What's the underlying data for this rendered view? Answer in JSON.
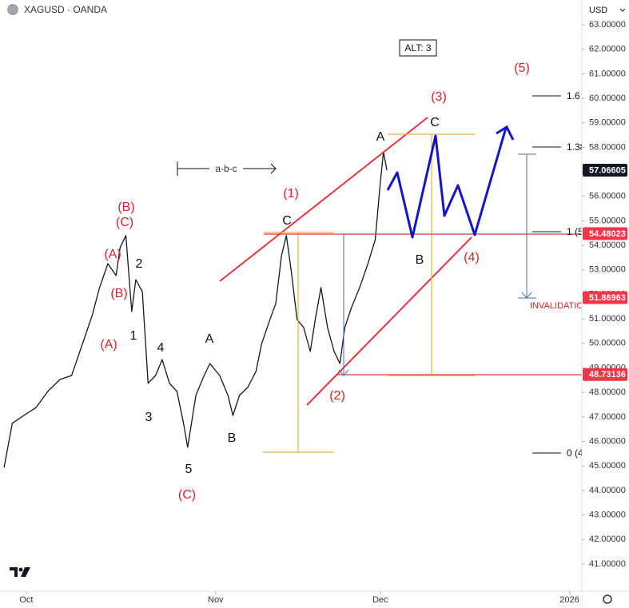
{
  "chart_data": {
    "type": "line",
    "title": "XAGUSD · OANDA",
    "currency": "USD",
    "color": "#131722",
    "x": [
      -2.7,
      -1.7,
      -0.3,
      1.2,
      2.6,
      4.1,
      5.5,
      6.5,
      8.0,
      8.9,
      9.9,
      10.9,
      11.4,
      12.1,
      12.8,
      13.3,
      14.1,
      14.8,
      15.7,
      16.5,
      17.4,
      18.3,
      19.1,
      19.6,
      20.6,
      21.6,
      22.3,
      23.5,
      24.5,
      25.1,
      25.9,
      26.9,
      27.9,
      28.6,
      29.6,
      30.3,
      31.0,
      31.6,
      32.2,
      32.9,
      33.7,
      34.5,
      35.1,
      35.8,
      36.6,
      37.4,
      38.1,
      38.7,
      39.5,
      40.5,
      41.5,
      42.4,
      43.0,
      43.4,
      43.8
    ],
    "values": [
      44.94,
      46.74,
      47.06,
      47.39,
      48.04,
      48.53,
      48.69,
      49.67,
      51.14,
      52.28,
      53.25,
      52.77,
      53.91,
      54.4,
      51.3,
      52.6,
      52.11,
      48.37,
      48.69,
      49.34,
      48.37,
      48.04,
      46.74,
      45.76,
      47.88,
      48.69,
      49.18,
      48.69,
      47.88,
      47.06,
      47.88,
      48.2,
      48.85,
      49.99,
      50.97,
      51.62,
      53.58,
      54.4,
      52.93,
      50.97,
      50.65,
      49.67,
      50.97,
      52.28,
      50.65,
      49.67,
      49.18,
      50.65,
      51.46,
      52.28,
      53.25,
      54.23,
      56.51,
      57.82,
      57.06605
    ],
    "xlim": [
      -3.2,
      67.5
    ],
    "ylim": [
      39.89,
      64.01
    ],
    "xticks": [
      {
        "value": 0,
        "label": "Oct"
      },
      {
        "value": 23,
        "label": "Nov"
      },
      {
        "value": 43,
        "label": "Dec"
      },
      {
        "value": 66,
        "label": "2026"
      }
    ],
    "yticks": [
      {
        "value": 41,
        "label": "41.00000"
      },
      {
        "value": 42,
        "label": "42.00000"
      },
      {
        "value": 43,
        "label": "43.00000"
      },
      {
        "value": 44,
        "label": "44.00000"
      },
      {
        "value": 45,
        "label": "45.00000"
      },
      {
        "value": 46,
        "label": "46.00000"
      },
      {
        "value": 47,
        "label": "47.00000"
      },
      {
        "value": 48,
        "label": "48.00000"
      },
      {
        "value": 49,
        "label": "49.00000"
      },
      {
        "value": 50,
        "label": "50.00000"
      },
      {
        "value": 51,
        "label": "51.00000"
      },
      {
        "value": 52,
        "label": "52.00000"
      },
      {
        "value": 53,
        "label": "53.00000"
      },
      {
        "value": 54,
        "label": "54.00000"
      },
      {
        "value": 55,
        "label": "55.00000"
      },
      {
        "value": 56,
        "label": "56.00000"
      },
      {
        "value": 57,
        "label": "57.00000"
      },
      {
        "value": 58,
        "label": "58.00000"
      },
      {
        "value": 59,
        "label": "59.00000"
      },
      {
        "value": 60,
        "label": "60.00000"
      },
      {
        "value": 61,
        "label": "61.00000"
      },
      {
        "value": 62,
        "label": "62.00000"
      },
      {
        "value": 63,
        "label": "63.00000"
      }
    ],
    "price_labels": [
      {
        "value": 57.06605,
        "color": "#131722"
      },
      {
        "value": 54.48023,
        "color": "#f23645"
      },
      {
        "value": 51.86963,
        "color": "#f23645"
      },
      {
        "value": 48.73136,
        "color": "#f23645"
      }
    ],
    "annotations": [
      "(B)",
      "(C)",
      "(A)",
      "2",
      "(B)",
      "1",
      "(A)",
      "4",
      "3",
      "5",
      "(C)",
      "A",
      "B",
      "C",
      "(1)",
      "(2)",
      "A",
      "C",
      "(3)",
      "(5)",
      "B",
      "(4)",
      "a-b-c",
      "ALT: 3",
      "INVALIDATIO",
      "1.6",
      "1.38",
      "1 (5",
      "0 (4"
    ]
  }
}
